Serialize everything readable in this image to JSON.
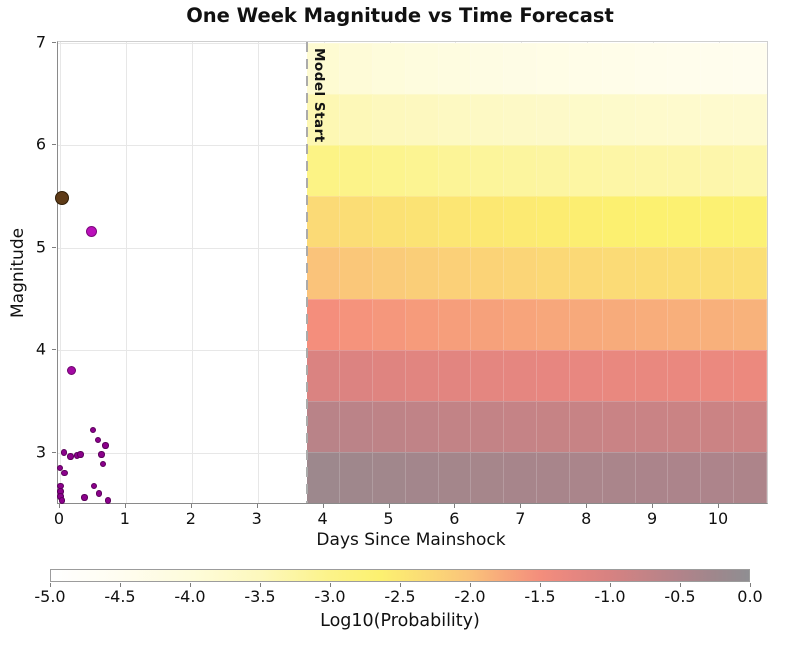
{
  "chart_data": {
    "type": "heatmap",
    "title": "One Week Magnitude vs Time Forecast",
    "xlabel": "Days Since Mainshock",
    "ylabel": "Magnitude",
    "xlim": [
      -0.03,
      10.76
    ],
    "ylim": [
      2.5,
      7.0
    ],
    "x_ticks": [
      0,
      1,
      2,
      3,
      4,
      5,
      6,
      7,
      8,
      9,
      10
    ],
    "y_ticks": [
      3,
      4,
      5,
      6,
      7
    ],
    "grid": true,
    "model_start": {
      "day": 3.75,
      "label": "Model Start"
    },
    "forecast_heatmap": {
      "x_start_day": 3.75,
      "x_end_day": 10.76,
      "n_cols": 14,
      "mag_bin_edges": [
        7.0,
        6.5,
        6.0,
        5.5,
        5.0,
        4.5,
        4.0,
        3.5,
        3.0,
        2.5
      ],
      "log10_probability_rows": [
        {
          "mag_range": "6.5-7.0",
          "values": [
            -3.85,
            -3.93,
            -4.0,
            -4.07,
            -4.13,
            -4.18,
            -4.23,
            -4.27,
            -4.31,
            -4.34,
            -4.37,
            -4.4,
            -4.42,
            -4.45
          ]
        },
        {
          "mag_range": "6.0-6.5",
          "values": [
            -3.4,
            -3.45,
            -3.5,
            -3.54,
            -3.58,
            -3.62,
            -3.65,
            -3.68,
            -3.7,
            -3.73,
            -3.75,
            -3.76,
            -3.78,
            -3.8
          ]
        },
        {
          "mag_range": "5.5-6.0",
          "values": [
            -2.95,
            -3.0,
            -3.05,
            -3.09,
            -3.13,
            -3.17,
            -3.2,
            -3.23,
            -3.25,
            -3.28,
            -3.3,
            -3.31,
            -3.33,
            -3.35
          ]
        },
        {
          "mag_range": "5.0-5.5",
          "values": [
            -2.3,
            -2.35,
            -2.4,
            -2.44,
            -2.48,
            -2.52,
            -2.55,
            -2.58,
            -2.6,
            -2.63,
            -2.65,
            -2.66,
            -2.68,
            -2.7
          ]
        },
        {
          "mag_range": "4.5-5.0",
          "values": [
            -2.0,
            -2.05,
            -2.1,
            -2.14,
            -2.17,
            -2.21,
            -2.24,
            -2.27,
            -2.29,
            -2.31,
            -2.33,
            -2.35,
            -2.36,
            -2.38
          ]
        },
        {
          "mag_range": "4.0-4.5",
          "values": [
            -1.5,
            -1.55,
            -1.59,
            -1.63,
            -1.66,
            -1.69,
            -1.72,
            -1.75,
            -1.77,
            -1.79,
            -1.8,
            -1.82,
            -1.83,
            -1.85
          ]
        },
        {
          "mag_range": "3.5-4.0",
          "values": [
            -1.05,
            -1.09,
            -1.13,
            -1.16,
            -1.19,
            -1.22,
            -1.24,
            -1.26,
            -1.28,
            -1.3,
            -1.31,
            -1.32,
            -1.34,
            -1.35
          ]
        },
        {
          "mag_range": "3.0-3.5",
          "values": [
            -0.6,
            -0.63,
            -0.66,
            -0.69,
            -0.72,
            -0.74,
            -0.76,
            -0.78,
            -0.79,
            -0.81,
            -0.82,
            -0.83,
            -0.84,
            -0.85
          ]
        },
        {
          "mag_range": "2.5-3.0",
          "values": [
            -0.22,
            -0.25,
            -0.28,
            -0.3,
            -0.32,
            -0.34,
            -0.36,
            -0.37,
            -0.39,
            -0.4,
            -0.41,
            -0.42,
            -0.43,
            -0.44
          ]
        }
      ]
    },
    "colorbar": {
      "label": "Log10(Probability)",
      "range": [
        -5.0,
        0.0
      ],
      "ticks": [
        -5.0,
        -4.5,
        -4.0,
        -3.5,
        -3.0,
        -2.5,
        -2.0,
        -1.5,
        -1.0,
        -0.5,
        0.0
      ],
      "stops": [
        [
          -5.0,
          "#ffffff"
        ],
        [
          -4.5,
          "#fffdf0"
        ],
        [
          -4.0,
          "#fefcdb"
        ],
        [
          -3.5,
          "#fdf8bd"
        ],
        [
          -3.0,
          "#fcf389"
        ],
        [
          -2.65,
          "#fcf170"
        ],
        [
          -2.3,
          "#fbda76"
        ],
        [
          -2.0,
          "#fac37a"
        ],
        [
          -1.75,
          "#f7a77b"
        ],
        [
          -1.5,
          "#f48e7c"
        ],
        [
          -1.25,
          "#e68680"
        ],
        [
          -1.0,
          "#d78281"
        ],
        [
          -0.75,
          "#c48386"
        ],
        [
          -0.5,
          "#b2838a"
        ],
        [
          -0.25,
          "#9f878c"
        ],
        [
          0.0,
          "#8f8e92"
        ]
      ]
    },
    "observed_events": [
      {
        "day": 0.03,
        "mag": 5.49,
        "r": 7,
        "fill": "#5e3b17",
        "stroke": "#2f1d06",
        "role": "mainshock"
      },
      {
        "day": 0.48,
        "mag": 5.16,
        "r": 5.5,
        "fill": "#bb10bb",
        "stroke": "#7c077c"
      },
      {
        "day": 0.18,
        "mag": 3.8,
        "r": 4.5,
        "fill": "#a309a3",
        "stroke": "#6d066d"
      },
      {
        "day": 0.5,
        "mag": 3.22
      },
      {
        "day": 0.58,
        "mag": 3.12
      },
      {
        "day": 0.69,
        "mag": 3.07
      },
      {
        "day": 0.06,
        "mag": 3.0
      },
      {
        "day": 0.16,
        "mag": 2.96
      },
      {
        "day": 0.26,
        "mag": 2.97
      },
      {
        "day": 0.31,
        "mag": 2.98
      },
      {
        "day": 0.63,
        "mag": 2.98
      },
      {
        "day": 0.65,
        "mag": 2.89
      },
      {
        "day": 0.0,
        "mag": 2.85
      },
      {
        "day": 0.07,
        "mag": 2.8
      },
      {
        "day": 0.005,
        "mag": 2.67
      },
      {
        "day": 0.005,
        "mag": 2.62
      },
      {
        "day": 0.005,
        "mag": 2.57
      },
      {
        "day": 0.03,
        "mag": 2.53
      },
      {
        "day": 0.52,
        "mag": 2.67
      },
      {
        "day": 0.59,
        "mag": 2.6
      },
      {
        "day": 0.37,
        "mag": 2.56
      },
      {
        "day": 0.73,
        "mag": 2.53
      }
    ],
    "event_default_style": {
      "r": 3.2,
      "fill": "#8b018b",
      "stroke": "#5a015a"
    }
  }
}
